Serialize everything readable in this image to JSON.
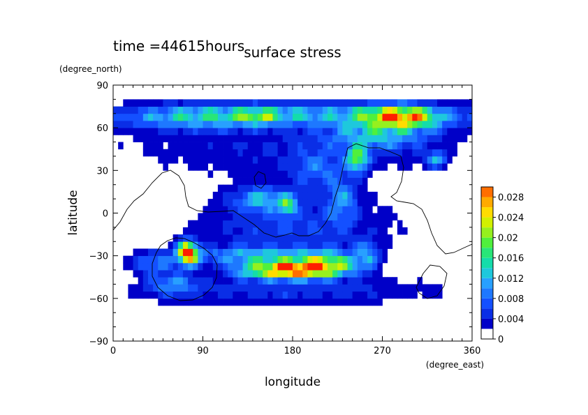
{
  "chart_data": {
    "type": "heatmap",
    "title": "surface stress",
    "subtitle": "time =44615hours",
    "xlabel": "longitude",
    "x_unit": "(degree_east)",
    "ylabel": "latitude",
    "y_unit": "(degree_north)",
    "xlim": [
      0,
      360
    ],
    "ylim": [
      -90,
      90
    ],
    "x_ticks": [
      "0",
      "90",
      "180",
      "270",
      "360"
    ],
    "y_ticks": [
      "90",
      "60",
      "30",
      "0",
      "−30",
      "−60",
      "−90"
    ],
    "x_tick_values": [
      0,
      90,
      180,
      270,
      360
    ],
    "y_tick_values": [
      90,
      60,
      30,
      0,
      -30,
      -60,
      -90
    ],
    "colorbar": {
      "min": 0,
      "max": 0.03,
      "tick_labels": [
        "0",
        "0.004",
        "0.008",
        "0.012",
        "0.016",
        "0.02",
        "0.024",
        "0.028"
      ],
      "tick_values": [
        0,
        0.004,
        0.008,
        0.012,
        0.016,
        0.02,
        0.024,
        0.028
      ],
      "levels": [
        0.002,
        0.004,
        0.006,
        0.008,
        0.01,
        0.012,
        0.014,
        0.016,
        0.018,
        0.02,
        0.022,
        0.024,
        0.026,
        0.028,
        0.03
      ],
      "colors": [
        "#ffffff",
        "#0000c8",
        "#0a2ee6",
        "#1450ff",
        "#1e78ff",
        "#28a0ff",
        "#1ec8dc",
        "#14dcaa",
        "#28e678",
        "#50f03c",
        "#96f01e",
        "#d2f000",
        "#ffdc00",
        "#ffaa00",
        "#ff6e00",
        "#ff1e00"
      ]
    },
    "features": [
      {
        "lon": 80,
        "lat": 68,
        "amp": 0.012,
        "rlon": 80,
        "rlat": 9
      },
      {
        "lon": 200,
        "lat": 70,
        "amp": 0.01,
        "rlon": 90,
        "rlat": 8
      },
      {
        "lon": 290,
        "lat": 68,
        "amp": 0.024,
        "rlon": 40,
        "rlat": 8
      },
      {
        "lon": 265,
        "lat": 55,
        "amp": 0.01,
        "rlon": 50,
        "rlat": 10
      },
      {
        "lon": 145,
        "lat": 68,
        "amp": 0.008,
        "rlon": 20,
        "rlat": 5
      },
      {
        "lon": 245,
        "lat": 38,
        "amp": 0.018,
        "rlon": 10,
        "rlat": 8
      },
      {
        "lon": 205,
        "lat": 30,
        "amp": 0.006,
        "rlon": 25,
        "rlat": 12
      },
      {
        "lon": 150,
        "lat": 10,
        "amp": 0.01,
        "rlon": 30,
        "rlat": 8
      },
      {
        "lon": 175,
        "lat": 5,
        "amp": 0.012,
        "rlon": 8,
        "rlat": 6
      },
      {
        "lon": 230,
        "lat": 10,
        "amp": 0.008,
        "rlon": 15,
        "rlat": 15
      },
      {
        "lon": 325,
        "lat": 38,
        "amp": 0.01,
        "rlon": 10,
        "rlat": 6
      },
      {
        "lon": 75,
        "lat": -28,
        "amp": 0.03,
        "rlon": 10,
        "rlat": 8
      },
      {
        "lon": 175,
        "lat": -40,
        "amp": 0.028,
        "rlon": 45,
        "rlat": 6
      },
      {
        "lon": 215,
        "lat": -35,
        "amp": 0.016,
        "rlon": 30,
        "rlat": 8
      },
      {
        "lon": 140,
        "lat": -30,
        "amp": 0.01,
        "rlon": 60,
        "rlat": 6
      },
      {
        "lon": 60,
        "lat": -50,
        "amp": 0.008,
        "rlon": 25,
        "rlat": 8
      },
      {
        "lon": 255,
        "lat": -30,
        "amp": 0.008,
        "rlon": 12,
        "rlat": 10
      },
      {
        "lon": 40,
        "lat": -35,
        "amp": 0.008,
        "rlon": 25,
        "rlat": 8
      },
      {
        "lon": 180,
        "lat": -10,
        "amp": 0.006,
        "rlon": 100,
        "rlat": 25
      },
      {
        "lon": 180,
        "lat": -55,
        "amp": 0.005,
        "rlon": 160,
        "rlat": 10
      },
      {
        "lon": 180,
        "lat": 45,
        "amp": 0.004,
        "rlon": 180,
        "rlat": 20
      }
    ]
  }
}
